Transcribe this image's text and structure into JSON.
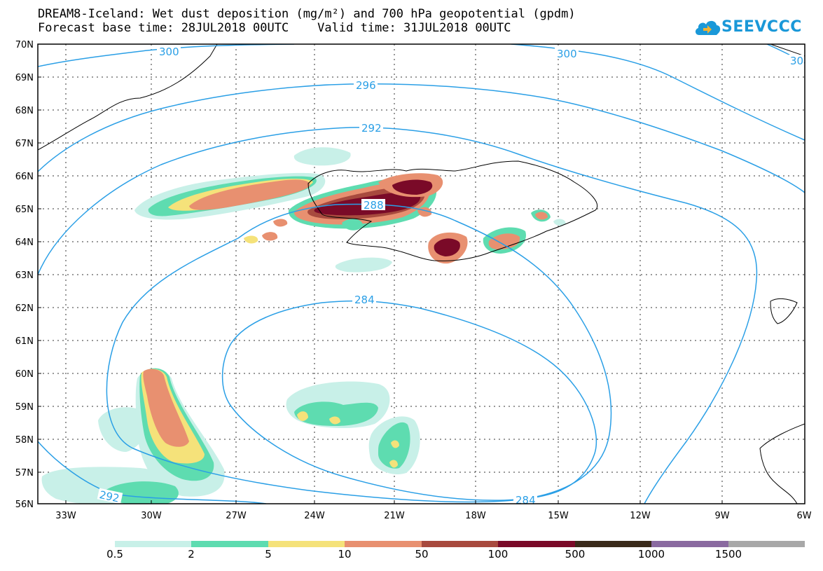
{
  "header": {
    "title_line1": "DREAM8-Iceland: Wet dust deposition (mg/m²) and 700 hPa geopotential (gpdm)",
    "title_line2": "Forecast base time: 28JUL2018 00UTC    Valid time: 31JUL2018 00UTC"
  },
  "logo": {
    "text": "SEEVCCC",
    "icon": "cloud-icon"
  },
  "map": {
    "latitude_labels": [
      "70N",
      "69N",
      "68N",
      "67N",
      "66N",
      "65N",
      "64N",
      "63N",
      "62N",
      "61N",
      "60N",
      "59N",
      "58N",
      "57N",
      "56N"
    ],
    "longitude_labels": [
      "33W",
      "30W",
      "27W",
      "24W",
      "21W",
      "18W",
      "15W",
      "12W",
      "9W",
      "6W"
    ],
    "contour_labels": [
      "300",
      "300",
      "30",
      "296",
      "292",
      "288",
      "284",
      "284",
      "292"
    ],
    "contour_color": "#2a9fe6",
    "coast_color": "#000000"
  },
  "legend": {
    "labels": [
      "0.5",
      "2",
      "5",
      "10",
      "50",
      "100",
      "500",
      "1000",
      "1500"
    ],
    "colors": [
      "#c8f0e8",
      "#5edcb0",
      "#f5e27a",
      "#e89070",
      "#a84a3e",
      "#7a0a28",
      "#3a2a1a",
      "#8a6aa0",
      "#a8a8a8"
    ]
  }
}
